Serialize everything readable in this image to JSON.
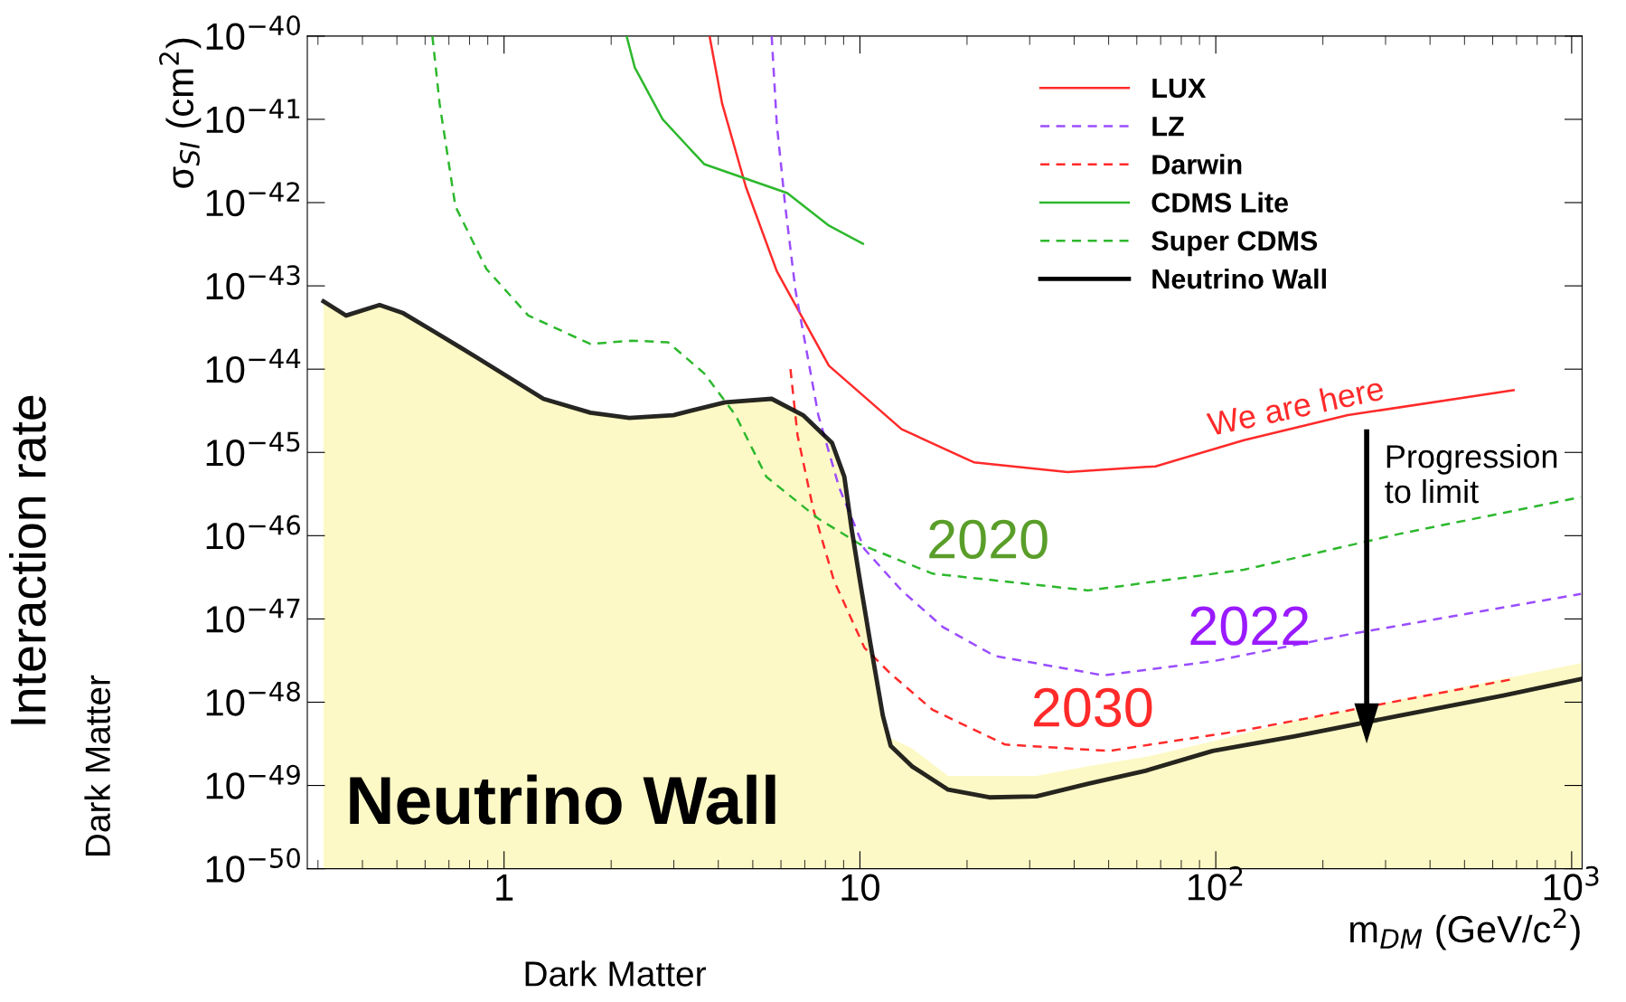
{
  "chart_data": {
    "type": "line",
    "xlabel": "m$_{DM}$ (GeV/c$^{2}$)",
    "ylabel": "σ$_{SI}$ (cm$^{2}$)",
    "log": "xy",
    "xlim": [
      0.28,
      1070
    ],
    "ylim": [
      1e-50,
      1e-40
    ],
    "xticks": [
      {
        "value": 1,
        "label": "1"
      },
      {
        "value": 10,
        "label": "10"
      },
      {
        "value": 100,
        "label": "10$^{2}$"
      },
      {
        "value": 1000,
        "label": "10$^{3}$"
      }
    ],
    "yticks": [
      {
        "value": 1e-50,
        "label": "10$^{−50}$"
      },
      {
        "value": 1e-49,
        "label": "10$^{−49}$"
      },
      {
        "value": 1e-48,
        "label": "10$^{−48}$"
      },
      {
        "value": 1e-47,
        "label": "10$^{−47}$"
      },
      {
        "value": 1e-46,
        "label": "10$^{−46}$"
      },
      {
        "value": 1e-45,
        "label": "10$^{−45}$"
      },
      {
        "value": 1e-44,
        "label": "10$^{−44}$"
      },
      {
        "value": 1e-43,
        "label": "10$^{−43}$"
      },
      {
        "value": 1e-42,
        "label": "10$^{−42}$"
      },
      {
        "value": 1e-41,
        "label": "10$^{−41}$"
      },
      {
        "value": 1e-40,
        "label": "10$^{−40}$"
      }
    ],
    "grid": false,
    "legend": "top right",
    "marker": "none",
    "series": [
      {
        "type": "area",
        "color": "#fdf9c6",
        "x": [
          0.311,
          0.36,
          0.447,
          0.521,
          0.638,
          0.834,
          1.29,
          1.75,
          2.25,
          2.99,
          4.18,
          5.65,
          6.92,
          8.35,
          9.04,
          9.48,
          10,
          10.7,
          11.6,
          12.2,
          14.0,
          17.7,
          23.1,
          31.3,
          43.8,
          63.4,
          98,
          167,
          328,
          642,
          1062
        ],
        "values": [
          6.5e-44,
          4.4e-44,
          5.9e-44,
          4.7e-44,
          2.8e-44,
          1.4e-44,
          4.4e-45,
          3e-45,
          2.6e-45,
          2.8e-45,
          4e-45,
          4.4e-45,
          2.8e-45,
          1.3e-45,
          5.1e-46,
          1.2e-46,
          2.9e-47,
          5.1e-48,
          6.9e-49,
          3.7e-49,
          2.8e-49,
          1.3e-49,
          1.3e-49,
          1.3e-49,
          1.7e-49,
          2.2e-49,
          3.4e-49,
          6e-49,
          1.07e-48,
          1.9e-48,
          2.95e-48
        ]
      },
      {
        "name": "LUX",
        "color": "#ff2a2a",
        "line_style": "solid",
        "x": [
          3.78,
          4.1,
          4.78,
          5.84,
          8.18,
          13.1,
          20.9,
          38.3,
          67.7,
          120,
          235,
          687
        ],
        "values": [
          1e-40,
          1.55e-41,
          1.55e-42,
          1.5e-43,
          1.1e-44,
          1.9e-45,
          7.6e-46,
          5.8e-46,
          6.8e-46,
          1.4e-45,
          2.8e-45,
          5.6e-45
        ]
      },
      {
        "name": "LZ",
        "color": "#9a4dff",
        "line_style": "dashed",
        "x": [
          5.65,
          5.84,
          6.17,
          6.59,
          7.64,
          8.74,
          10.3,
          13.1,
          17.1,
          23.9,
          48.4,
          98,
          235,
          1062
        ],
        "values": [
          1e-40,
          8.8e-42,
          9e-43,
          8.9e-44,
          2.8e-45,
          3.8e-46,
          6.9e-47,
          2.2e-47,
          8e-48,
          3.6e-48,
          2.1e-48,
          3.1e-48,
          6.5e-48,
          2e-47
        ]
      },
      {
        "name": "Darwin",
        "color": "#ff2a2a",
        "line_style": "dashed",
        "x": [
          6.38,
          6.68,
          7.39,
          8.45,
          10.3,
          12.2,
          16.0,
          25.6,
          50.1,
          120,
          687
        ],
        "values": [
          1e-44,
          1.6e-45,
          2.1e-46,
          2.9e-47,
          4.5e-48,
          2.2e-48,
          8.1e-49,
          3.1e-49,
          2.6e-49,
          4.6e-49,
          1.9e-48
        ]
      },
      {
        "name": "CDMS Lite",
        "color": "#2db82d",
        "line_style": "solid",
        "x": [
          2.21,
          2.33,
          2.79,
          3.65,
          6.25,
          8.18,
          10.2
        ],
        "values": [
          1e-40,
          4.2e-41,
          1e-41,
          2.9e-42,
          1.3e-42,
          5.3e-43,
          3.2e-43
        ]
      },
      {
        "name": "Super CDMS",
        "color": "#2db82d",
        "line_style": "dashed",
        "x": [
          0.629,
          0.659,
          0.73,
          0.892,
          1.17,
          1.75,
          2.28,
          2.89,
          3.65,
          4.47,
          5.46,
          7.64,
          10,
          16.0,
          43.8,
          120,
          328,
          1062
        ],
        "values": [
          1e-40,
          1.55e-41,
          9e-43,
          1.6e-43,
          4.4e-44,
          2e-44,
          2.2e-44,
          2.1e-44,
          8.9e-45,
          2.8e-45,
          5.1e-46,
          1.6e-46,
          7.9e-47,
          3.5e-47,
          2.2e-47,
          3.9e-47,
          1.05e-46,
          2.9e-46
        ]
      },
      {
        "name": "Neutrino Wall",
        "color": "#000000",
        "line_style": "solid",
        "x": [
          0.311,
          0.36,
          0.447,
          0.521,
          0.638,
          0.834,
          1.29,
          1.75,
          2.25,
          2.99,
          4.18,
          5.65,
          6.92,
          8.35,
          9.04,
          9.48,
          10,
          10.7,
          11.6,
          12.2,
          14.0,
          17.7,
          23.1,
          31.3,
          43.8,
          63.4,
          98,
          167,
          328,
          642,
          1062
        ],
        "values": [
          6.5e-44,
          4.4e-44,
          5.9e-44,
          4.7e-44,
          2.8e-44,
          1.4e-44,
          4.4e-45,
          3e-45,
          2.6e-45,
          2.8e-45,
          4e-45,
          4.4e-45,
          2.8e-45,
          1.3e-45,
          5.1e-46,
          1.2e-46,
          2.9e-47,
          5.1e-48,
          6.9e-49,
          3e-49,
          1.7e-49,
          8.9e-50,
          7.2e-50,
          7.4e-50,
          1.05e-49,
          1.5e-49,
          2.6e-49,
          3.9e-49,
          6.9e-49,
          1.2e-48,
          1.9e-48
        ]
      }
    ],
    "annotations": [
      "We are here",
      "2020",
      "2022",
      "2030",
      "Progression\nto limit",
      "Neutrino Wall",
      "Interaction rate",
      "Dark Matter",
      "Dark Matter"
    ]
  }
}
